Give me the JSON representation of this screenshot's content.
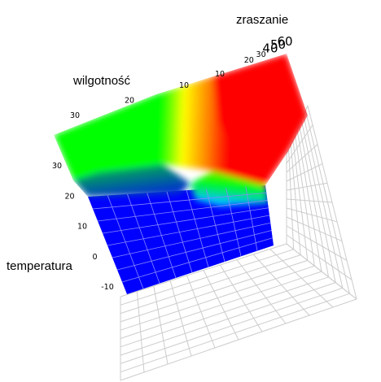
{
  "chart_data": {
    "type": "surface",
    "title": "",
    "axes": {
      "x": {
        "label": "wilgotność",
        "ticks": [
          10,
          20,
          30
        ]
      },
      "y": {
        "label": "zraszanie",
        "ticks": [
          10,
          20,
          30,
          40,
          50,
          60
        ]
      },
      "z": {
        "label": "temperatura",
        "ticks": [
          -10,
          0,
          10,
          20,
          30
        ]
      }
    },
    "surface_regions": [
      {
        "region": "low",
        "color": "#0000ff"
      },
      {
        "region": "high-wilgotność",
        "color": "#00ff00"
      },
      {
        "region": "transition",
        "color": "#ffff00"
      },
      {
        "region": "high-zraszanie",
        "color": "#ff0000"
      }
    ],
    "grid": true
  }
}
